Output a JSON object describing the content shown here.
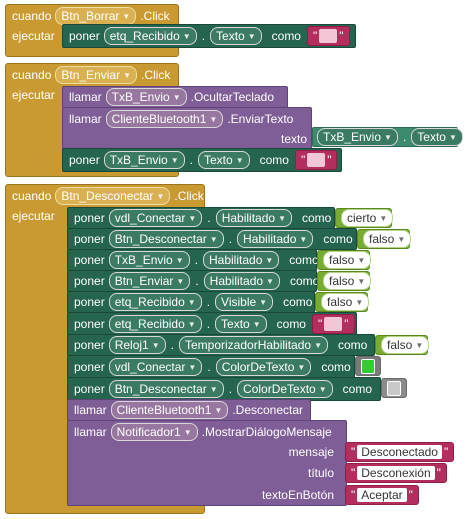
{
  "common": {
    "cuando": "cuando",
    "ejecutar": "ejecutar",
    "poner": "poner",
    "llamar": "llamar",
    "como": "como",
    "click": ".Click",
    "texto": "texto",
    "dot": "."
  },
  "block1": {
    "component": "Btn_Borrar",
    "target": "etq_Recibido",
    "property": "Texto"
  },
  "block2": {
    "component": "Btn_Enviar",
    "call1": {
      "component": "TxB_Envio",
      "method": ".OcultarTeclado"
    },
    "call2": {
      "component": "ClienteBluetooth1",
      "method": ".EnviarTexto",
      "param": "texto",
      "arg_component": "TxB_Envio",
      "arg_property": "Texto"
    },
    "set": {
      "component": "TxB_Envio",
      "property": "Texto"
    }
  },
  "block3": {
    "component": "Btn_Desconectar",
    "sets": [
      {
        "component": "vdl_Conectar",
        "property": "Habilitado",
        "value": "cierto"
      },
      {
        "component": "Btn_Desconectar",
        "property": "Habilitado",
        "value": "falso"
      },
      {
        "component": "TxB_Envio",
        "property": "Habilitado",
        "value": "falso"
      },
      {
        "component": "Btn_Enviar",
        "property": "Habilitado",
        "value": "falso"
      },
      {
        "component": "etq_Recibido",
        "property": "Visible",
        "value": "falso"
      },
      {
        "component": "etq_Recibido",
        "property": "Texto",
        "value": ""
      },
      {
        "component": "Reloj1",
        "property": "TemporizadorHabilitado",
        "value": "falso"
      },
      {
        "component": "vdl_Conectar",
        "property": "ColorDeTexto",
        "value": "#33cc33"
      },
      {
        "component": "Btn_Desconectar",
        "property": "ColorDeTexto",
        "value": "#c8c8c8"
      }
    ],
    "call_bt": {
      "component": "ClienteBluetooth1",
      "method": ".Desconectar"
    },
    "call_notif": {
      "component": "Notificador1",
      "method": ".MostrarDiálogoMensaje",
      "params": [
        {
          "name": "mensaje",
          "value": "Desconectado"
        },
        {
          "name": "título",
          "value": "Desconexión"
        },
        {
          "name": "textoEnBotón",
          "value": "Aceptar"
        }
      ]
    }
  },
  "colors": {
    "event": "#c99a31",
    "setter": "#25654f",
    "call": "#7f5d97",
    "boolean": "#77ab33",
    "text": "#b32d5e",
    "color_swatch_green": "#33cc33",
    "color_swatch_gray": "#c8c8c8"
  }
}
